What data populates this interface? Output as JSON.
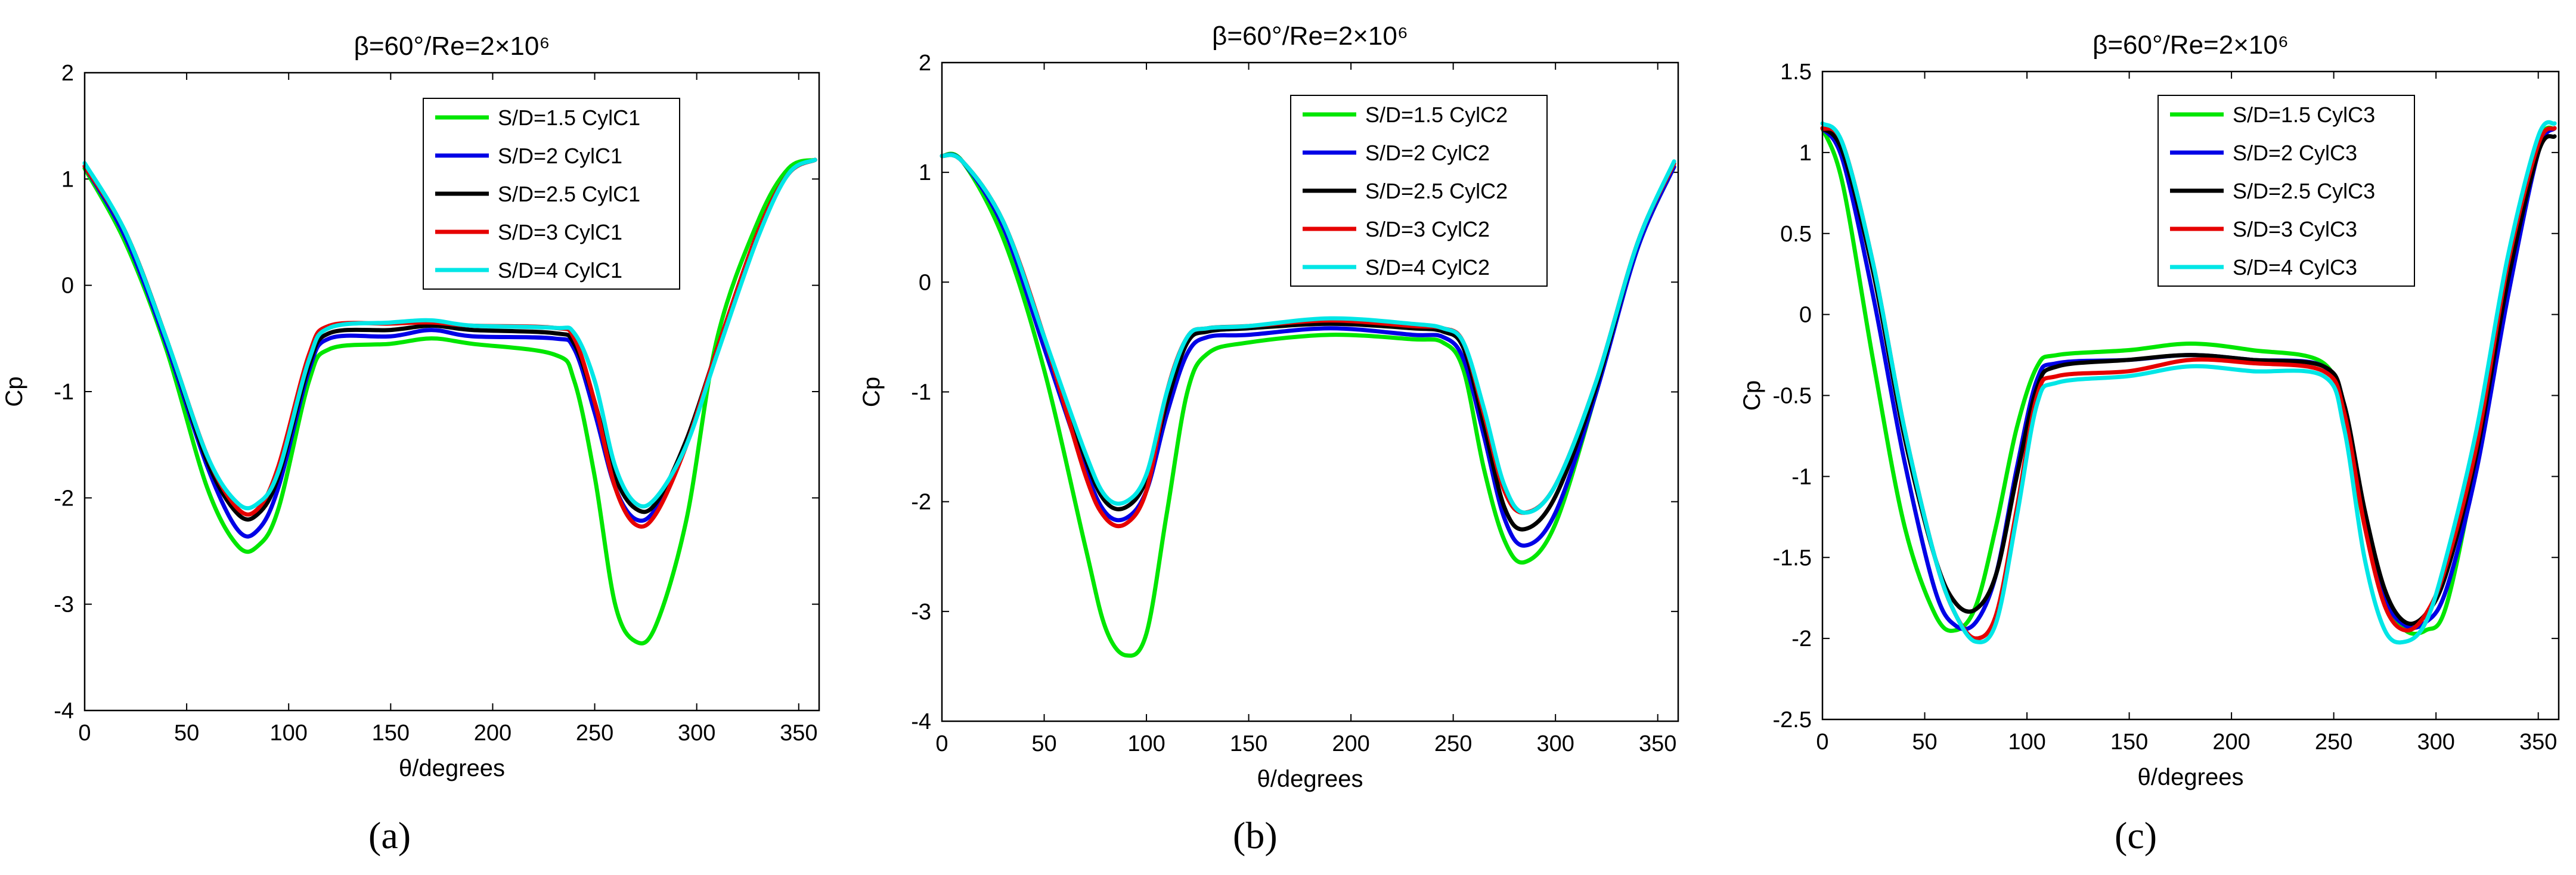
{
  "figure": {
    "panel_labels": [
      "(a)",
      "(b)",
      "(c)"
    ]
  },
  "colors": {
    "S/D=1.5": "#00e600",
    "S/D=2": "#0000e6",
    "S/D=2.5": "#000000",
    "S/D=3": "#e60000",
    "S/D=4": "#00e6e6"
  },
  "chart_data": [
    {
      "type": "line",
      "title": "β=60°/Re=2×10⁶",
      "xlabel": "θ/degrees",
      "ylabel": "Cp",
      "xlim": [
        0,
        360
      ],
      "ylim": [
        -4,
        2
      ],
      "xticks": [
        "0",
        "50",
        "100",
        "150",
        "200",
        "250",
        "300",
        "350"
      ],
      "yticks": [
        "-4",
        "-3",
        "-2",
        "-1",
        "0",
        "1",
        "2"
      ],
      "legend_position": "top-right",
      "series": [
        {
          "name": "S/D=1.5 CylC1",
          "color": "#00e600",
          "x": [
            0,
            20,
            40,
            60,
            75,
            85,
            95,
            110,
            120,
            150,
            170,
            190,
            230,
            240,
            250,
            260,
            270,
            280,
            295,
            310,
            330,
            345,
            358
          ],
          "y": [
            1.1,
            0.4,
            -0.6,
            -1.9,
            -2.45,
            -2.45,
            -2.1,
            -0.9,
            -0.6,
            -0.55,
            -0.5,
            -0.55,
            -0.65,
            -0.9,
            -1.8,
            -3.0,
            -3.35,
            -3.2,
            -2.2,
            -0.5,
            0.6,
            1.1,
            1.18
          ]
        },
        {
          "name": "S/D=2 CylC1",
          "color": "#0000e6",
          "x": [
            0,
            20,
            40,
            60,
            75,
            85,
            95,
            110,
            120,
            150,
            170,
            190,
            230,
            240,
            250,
            260,
            270,
            280,
            295,
            310,
            330,
            345,
            358
          ],
          "y": [
            1.12,
            0.45,
            -0.55,
            -1.7,
            -2.3,
            -2.3,
            -1.9,
            -0.8,
            -0.5,
            -0.48,
            -0.42,
            -0.48,
            -0.5,
            -0.6,
            -1.2,
            -1.9,
            -2.2,
            -2.1,
            -1.5,
            -0.6,
            0.5,
            1.05,
            1.18
          ]
        },
        {
          "name": "S/D=2.5 CylC1",
          "color": "#000000",
          "x": [
            0,
            20,
            40,
            60,
            75,
            85,
            95,
            110,
            120,
            150,
            170,
            190,
            230,
            240,
            250,
            260,
            270,
            280,
            295,
            310,
            330,
            345,
            358
          ],
          "y": [
            1.12,
            0.5,
            -0.5,
            -1.65,
            -2.15,
            -2.15,
            -1.8,
            -0.75,
            -0.45,
            -0.42,
            -0.38,
            -0.42,
            -0.45,
            -0.55,
            -1.1,
            -1.8,
            -2.1,
            -2.05,
            -1.45,
            -0.6,
            0.5,
            1.05,
            1.18
          ]
        },
        {
          "name": "S/D=3 CylC1",
          "color": "#e60000",
          "x": [
            0,
            20,
            40,
            60,
            75,
            85,
            95,
            110,
            120,
            150,
            170,
            190,
            230,
            240,
            250,
            260,
            270,
            280,
            295,
            310,
            330,
            345,
            358
          ],
          "y": [
            1.12,
            0.5,
            -0.5,
            -1.6,
            -2.1,
            -2.1,
            -1.7,
            -0.65,
            -0.38,
            -0.36,
            -0.35,
            -0.38,
            -0.4,
            -0.5,
            -1.1,
            -1.9,
            -2.25,
            -2.15,
            -1.5,
            -0.6,
            0.5,
            1.05,
            1.18
          ]
        },
        {
          "name": "S/D=4 CylC1",
          "color": "#00e6e6",
          "x": [
            0,
            20,
            40,
            60,
            75,
            85,
            95,
            110,
            120,
            150,
            170,
            190,
            230,
            240,
            250,
            260,
            270,
            280,
            295,
            310,
            330,
            345,
            358
          ],
          "y": [
            1.15,
            0.5,
            -0.5,
            -1.6,
            -2.05,
            -2.05,
            -1.75,
            -0.7,
            -0.4,
            -0.35,
            -0.33,
            -0.38,
            -0.4,
            -0.45,
            -0.9,
            -1.7,
            -2.05,
            -2.0,
            -1.5,
            -0.65,
            0.45,
            1.05,
            1.18
          ]
        }
      ]
    },
    {
      "type": "line",
      "title": "β=60°/Re=2×10⁶",
      "xlabel": "θ/degrees",
      "ylabel": "Cp",
      "xlim": [
        0,
        360
      ],
      "ylim": [
        -4,
        2
      ],
      "xticks": [
        "0",
        "50",
        "100",
        "150",
        "200",
        "250",
        "300",
        "350"
      ],
      "yticks": [
        "-4",
        "-3",
        "-2",
        "-1",
        "0",
        "1",
        "2"
      ],
      "legend_position": "top-right",
      "series": [
        {
          "name": "S/D=1.5 CylC2",
          "color": "#00e600",
          "x": [
            0,
            10,
            30,
            50,
            70,
            80,
            90,
            100,
            110,
            120,
            130,
            150,
            190,
            230,
            245,
            255,
            265,
            275,
            285,
            300,
            320,
            340,
            358
          ],
          "y": [
            1.15,
            1.1,
            0.4,
            -0.8,
            -2.4,
            -3.15,
            -3.4,
            -3.2,
            -2.1,
            -1.0,
            -0.65,
            -0.55,
            -0.48,
            -0.52,
            -0.55,
            -0.8,
            -1.7,
            -2.35,
            -2.55,
            -2.2,
            -1.0,
            0.3,
            1.05
          ]
        },
        {
          "name": "S/D=2 CylC2",
          "color": "#0000e6",
          "x": [
            0,
            10,
            30,
            50,
            70,
            80,
            90,
            100,
            110,
            120,
            130,
            150,
            190,
            230,
            245,
            255,
            265,
            275,
            285,
            300,
            320,
            340,
            358
          ],
          "y": [
            1.15,
            1.1,
            0.5,
            -0.6,
            -1.7,
            -2.1,
            -2.15,
            -1.9,
            -1.2,
            -0.65,
            -0.5,
            -0.48,
            -0.42,
            -0.48,
            -0.5,
            -0.7,
            -1.4,
            -2.15,
            -2.4,
            -2.1,
            -1.0,
            0.3,
            1.05
          ]
        },
        {
          "name": "S/D=2.5 CylC2",
          "color": "#000000",
          "x": [
            0,
            10,
            30,
            50,
            70,
            80,
            90,
            100,
            110,
            120,
            130,
            150,
            190,
            230,
            245,
            255,
            265,
            275,
            285,
            300,
            320,
            340,
            358
          ],
          "y": [
            1.15,
            1.1,
            0.55,
            -0.5,
            -1.6,
            -2.0,
            -2.05,
            -1.8,
            -1.1,
            -0.55,
            -0.45,
            -0.42,
            -0.38,
            -0.42,
            -0.45,
            -0.6,
            -1.3,
            -2.05,
            -2.25,
            -1.95,
            -0.95,
            0.35,
            1.08
          ]
        },
        {
          "name": "S/D=3 CylC2",
          "color": "#e60000",
          "x": [
            0,
            10,
            30,
            50,
            70,
            80,
            90,
            100,
            110,
            120,
            130,
            150,
            190,
            230,
            245,
            255,
            265,
            275,
            285,
            300,
            320,
            340,
            358
          ],
          "y": [
            1.15,
            1.1,
            0.55,
            -0.5,
            -1.75,
            -2.15,
            -2.2,
            -1.9,
            -1.0,
            -0.5,
            -0.42,
            -0.4,
            -0.35,
            -0.4,
            -0.42,
            -0.55,
            -1.2,
            -1.9,
            -2.1,
            -1.85,
            -0.9,
            0.35,
            1.08
          ]
        },
        {
          "name": "S/D=4 CylC2",
          "color": "#00e6e6",
          "x": [
            0,
            10,
            30,
            50,
            70,
            80,
            90,
            100,
            110,
            120,
            130,
            150,
            190,
            230,
            245,
            255,
            265,
            275,
            285,
            300,
            320,
            340,
            358
          ],
          "y": [
            1.15,
            1.1,
            0.55,
            -0.5,
            -1.55,
            -1.95,
            -2.0,
            -1.75,
            -1.0,
            -0.5,
            -0.42,
            -0.4,
            -0.33,
            -0.38,
            -0.42,
            -0.55,
            -1.15,
            -1.85,
            -2.1,
            -1.85,
            -0.9,
            0.35,
            1.1
          ]
        }
      ]
    },
    {
      "type": "line",
      "title": "β=60°/Re=2×10⁶",
      "xlabel": "θ/degrees",
      "ylabel": "Cp",
      "xlim": [
        0,
        360
      ],
      "ylim": [
        -2.5,
        1.5
      ],
      "xticks": [
        "0",
        "50",
        "100",
        "150",
        "200",
        "250",
        "300",
        "350"
      ],
      "yticks": [
        "-2.5",
        "-2",
        "-1.5",
        "-1",
        "-0.5",
        "0",
        "0.5",
        "1",
        "1.5"
      ],
      "legend_position": "top-right",
      "series": [
        {
          "name": "S/D=1.5 CylC3",
          "color": "#00e600",
          "x": [
            0,
            10,
            25,
            40,
            55,
            65,
            75,
            85,
            95,
            105,
            115,
            150,
            180,
            210,
            245,
            255,
            265,
            275,
            285,
            295,
            305,
            320,
            335,
            350,
            358
          ],
          "y": [
            1.15,
            0.8,
            -0.3,
            -1.3,
            -1.85,
            -1.95,
            -1.8,
            -1.3,
            -0.7,
            -0.32,
            -0.25,
            -0.22,
            -0.18,
            -0.22,
            -0.3,
            -0.65,
            -1.3,
            -1.75,
            -1.95,
            -1.95,
            -1.8,
            -0.9,
            0.2,
            1.05,
            1.15
          ]
        },
        {
          "name": "S/D=2 CylC3",
          "color": "#0000e6",
          "x": [
            0,
            10,
            25,
            40,
            55,
            65,
            75,
            85,
            95,
            105,
            115,
            150,
            180,
            210,
            245,
            255,
            265,
            275,
            285,
            295,
            305,
            320,
            335,
            350,
            358
          ],
          "y": [
            1.15,
            0.95,
            0.1,
            -0.9,
            -1.7,
            -1.92,
            -1.9,
            -1.6,
            -0.95,
            -0.4,
            -0.3,
            -0.28,
            -0.25,
            -0.28,
            -0.32,
            -0.6,
            -1.25,
            -1.75,
            -1.92,
            -1.9,
            -1.7,
            -0.95,
            0.1,
            1.0,
            1.15
          ]
        },
        {
          "name": "S/D=2.5 CylC3",
          "color": "#000000",
          "x": [
            0,
            10,
            25,
            40,
            55,
            65,
            75,
            85,
            95,
            105,
            115,
            150,
            180,
            210,
            245,
            255,
            265,
            275,
            285,
            295,
            305,
            320,
            335,
            350,
            358
          ],
          "y": [
            1.15,
            1.0,
            0.25,
            -0.75,
            -1.5,
            -1.78,
            -1.82,
            -1.6,
            -1.0,
            -0.45,
            -0.32,
            -0.28,
            -0.25,
            -0.28,
            -0.32,
            -0.55,
            -1.2,
            -1.7,
            -1.9,
            -1.85,
            -1.6,
            -0.85,
            0.2,
            1.0,
            1.1
          ]
        },
        {
          "name": "S/D=3 CylC3",
          "color": "#e60000",
          "x": [
            0,
            10,
            25,
            40,
            55,
            65,
            75,
            85,
            95,
            105,
            115,
            150,
            180,
            210,
            245,
            255,
            265,
            275,
            285,
            295,
            305,
            320,
            335,
            350,
            358
          ],
          "y": [
            1.15,
            1.05,
            0.3,
            -0.7,
            -1.5,
            -1.85,
            -2.0,
            -1.85,
            -1.2,
            -0.5,
            -0.38,
            -0.35,
            -0.28,
            -0.3,
            -0.35,
            -0.6,
            -1.3,
            -1.8,
            -1.95,
            -1.85,
            -1.55,
            -0.8,
            0.3,
            1.05,
            1.15
          ]
        },
        {
          "name": "S/D=4 CylC3",
          "color": "#00e6e6",
          "x": [
            0,
            10,
            25,
            40,
            55,
            65,
            75,
            85,
            95,
            105,
            115,
            150,
            180,
            210,
            245,
            255,
            265,
            275,
            285,
            295,
            305,
            320,
            335,
            350,
            358
          ],
          "y": [
            1.18,
            1.05,
            0.3,
            -0.7,
            -1.5,
            -1.85,
            -2.02,
            -1.9,
            -1.25,
            -0.55,
            -0.42,
            -0.38,
            -0.32,
            -0.35,
            -0.38,
            -0.7,
            -1.5,
            -1.95,
            -2.02,
            -1.9,
            -1.5,
            -0.7,
            0.35,
            1.1,
            1.18
          ]
        }
      ]
    }
  ]
}
